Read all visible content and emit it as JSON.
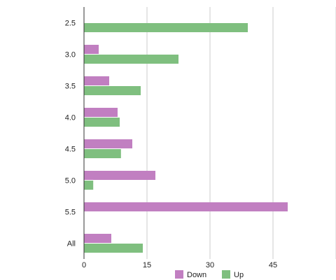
{
  "chart_data": {
    "type": "bar",
    "orientation": "horizontal",
    "categories": [
      "2.5",
      "3.0",
      "3.5",
      "4.0",
      "4.5",
      "5.0",
      "5.5",
      "All"
    ],
    "series": [
      {
        "name": "Down",
        "color": "#c17fc1",
        "values": [
          0,
          3.5,
          6,
          8,
          11.5,
          17,
          48.5,
          6.5
        ]
      },
      {
        "name": "Up",
        "color": "#7fbf7f",
        "values": [
          39,
          22.5,
          13.5,
          8.5,
          8.8,
          2.2,
          0,
          14
        ]
      }
    ],
    "x_ticks": [
      "0",
      "15",
      "30",
      "45"
    ],
    "xlim": [
      0,
      60
    ],
    "grid": true,
    "legend_position": "bottom"
  }
}
